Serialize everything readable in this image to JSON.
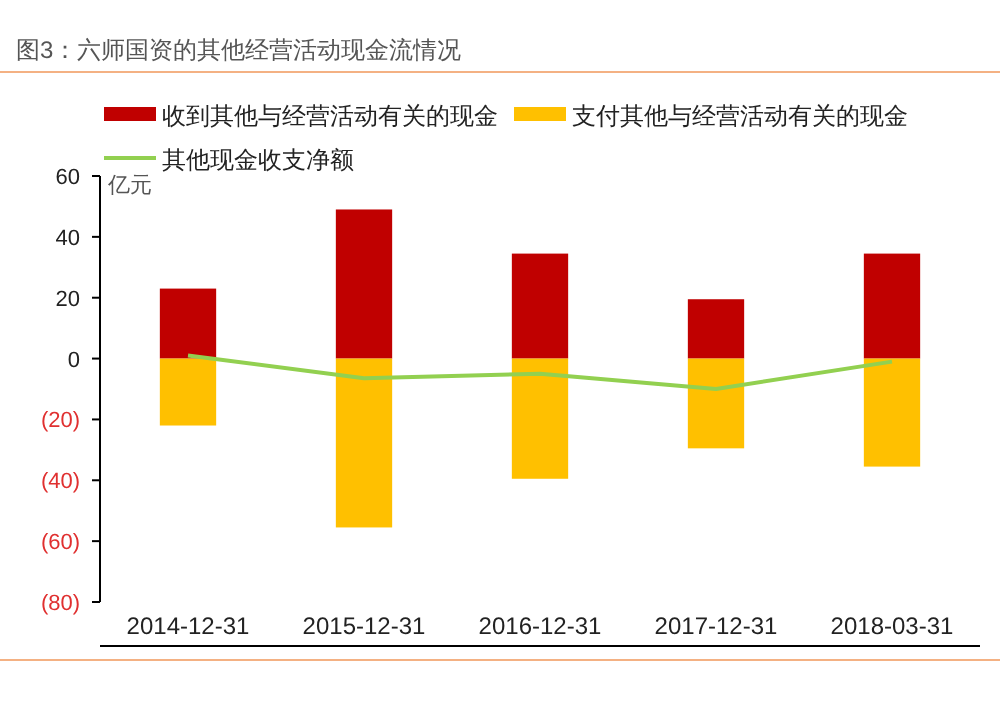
{
  "chart_data": {
    "type": "bar",
    "title": "图3：六师国资的其他经营活动现金流情况",
    "ylabel": "亿元",
    "categories": [
      "2014-12-31",
      "2015-12-31",
      "2016-12-31",
      "2017-12-31",
      "2018-03-31"
    ],
    "stacked": true,
    "series": [
      {
        "name": "收到其他与经营活动有关的现金",
        "color": "#c00000",
        "values": [
          23,
          49,
          34.5,
          19.5,
          34.5
        ]
      },
      {
        "name": "支付其他与经营活动有关的现金",
        "color": "#ffc000",
        "values": [
          -22,
          -55.5,
          -39.5,
          -29.5,
          -35.5
        ]
      },
      {
        "name": "其他现金收支净额",
        "type": "line",
        "color": "#92d050",
        "values": [
          1,
          -6.5,
          -5,
          -10,
          -1
        ]
      }
    ],
    "ylim": [
      -80,
      60
    ],
    "yticks": [
      {
        "value": -80,
        "label": "(80)"
      },
      {
        "value": -60,
        "label": "(60)"
      },
      {
        "value": -40,
        "label": "(40)"
      },
      {
        "value": -20,
        "label": "(20)"
      },
      0,
      20,
      40,
      60
    ],
    "legend": "top",
    "grid": false
  }
}
